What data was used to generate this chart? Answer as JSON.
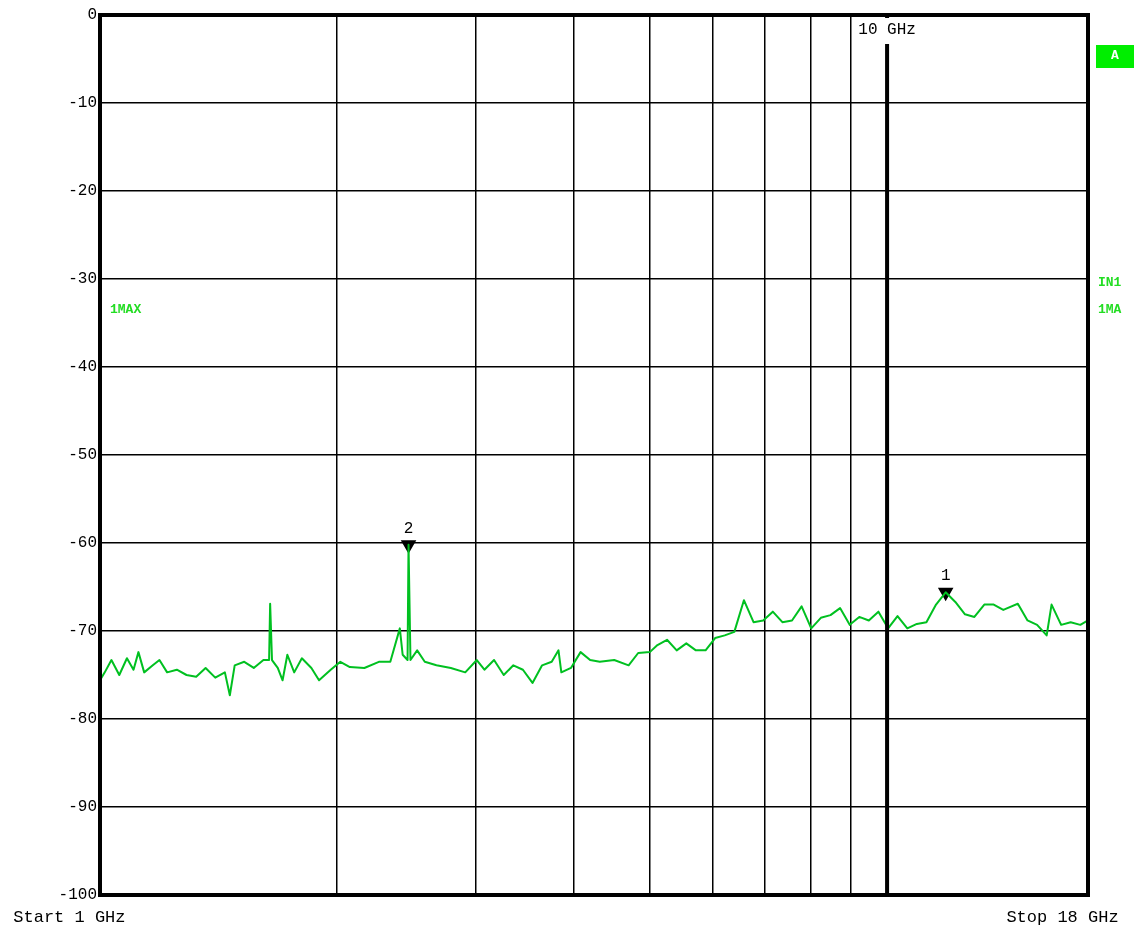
{
  "chart_data": {
    "type": "line",
    "x": [
      1.0,
      1.014,
      1.034,
      1.058,
      1.082,
      1.103,
      1.119,
      1.138,
      1.167,
      1.19,
      1.217,
      1.252,
      1.288,
      1.325,
      1.362,
      1.401,
      1.441,
      1.462,
      1.483,
      1.525,
      1.568,
      1.613,
      1.64,
      1.645,
      1.654,
      1.682,
      1.706,
      1.73,
      1.765,
      1.805,
      1.856,
      1.898,
      1.964,
      2.02,
      2.077,
      2.167,
      2.261,
      2.338,
      2.404,
      2.424,
      2.459,
      2.466,
      2.48,
      2.529,
      2.586,
      2.676,
      2.791,
      2.911,
      3.011,
      3.079,
      3.167,
      3.258,
      3.351,
      3.446,
      3.544,
      3.645,
      3.749,
      3.824,
      3.856,
      3.966,
      4.079,
      4.195,
      4.315,
      4.501,
      4.695,
      4.828,
      4.995,
      5.108,
      5.253,
      5.404,
      5.558,
      5.716,
      5.88,
      6.047,
      6.219,
      6.396,
      6.578,
      6.766,
      6.96,
      7.158,
      7.362,
      7.572,
      7.788,
      8.01,
      8.239,
      8.474,
      8.715,
      8.964,
      9.219,
      9.48,
      9.75,
      10.03,
      10.31,
      10.61,
      10.91,
      11.22,
      11.54,
      11.87,
      12.21,
      12.56,
      12.91,
      13.29,
      13.66,
      14.05,
      14.66,
      15.08,
      15.51,
      15.95,
      16.18,
      16.64,
      17.11,
      17.6,
      18.0
    ],
    "series": [
      {
        "color": "#00c020",
        "values": [
          -75.6,
          -74.7,
          -73.3,
          -75.0,
          -73.1,
          -74.4,
          -72.4,
          -74.7,
          -73.9,
          -73.3,
          -74.7,
          -74.4,
          -75.0,
          -75.2,
          -74.2,
          -75.3,
          -74.7,
          -77.3,
          -73.9,
          -73.5,
          -74.2,
          -73.3,
          -73.3,
          -66.9,
          -73.3,
          -74.2,
          -75.6,
          -72.7,
          -74.7,
          -73.1,
          -74.2,
          -75.6,
          -74.4,
          -73.5,
          -74.1,
          -74.2,
          -73.5,
          -73.5,
          -69.7,
          -72.7,
          -73.3,
          -60.2,
          -73.3,
          -72.2,
          -73.5,
          -73.9,
          -74.2,
          -74.7,
          -73.3,
          -74.4,
          -73.3,
          -75.0,
          -73.9,
          -74.4,
          -75.9,
          -73.9,
          -73.5,
          -72.2,
          -74.7,
          -74.2,
          -72.4,
          -73.3,
          -73.5,
          -73.3,
          -73.9,
          -72.5,
          -72.4,
          -71.6,
          -71.0,
          -72.2,
          -71.4,
          -72.2,
          -72.2,
          -70.8,
          -70.5,
          -70.1,
          -66.5,
          -69.0,
          -68.8,
          -67.8,
          -69.0,
          -68.8,
          -67.2,
          -69.7,
          -68.5,
          -68.2,
          -67.4,
          -69.3,
          -68.4,
          -68.8,
          -67.8,
          -69.7,
          -68.3,
          -69.7,
          -69.2,
          -69.0,
          -67.0,
          -65.6,
          -66.7,
          -68.1,
          -68.4,
          -67.0,
          -67.0,
          -67.6,
          -66.9,
          -68.8,
          -69.3,
          -70.5,
          -67.0,
          -69.3,
          -69.0,
          -69.3,
          -68.8
        ]
      },
      {
        "type": "scatter",
        "color": "#000000",
        "marker": "triangle",
        "x": [
          11.87,
          2.466
        ],
        "values": [
          -65.6,
          -60.2
        ]
      }
    ],
    "xlim": [
      1,
      18
    ],
    "xticks": [
      {
        "value": 1,
        "label": "1 GHz"
      },
      {
        "value": 2,
        "label": null
      },
      {
        "value": 3,
        "label": null
      },
      {
        "value": 4,
        "label": null
      },
      {
        "value": 5,
        "label": null
      },
      {
        "value": 6,
        "label": null
      },
      {
        "value": 7,
        "label": null
      },
      {
        "value": 8,
        "label": null
      },
      {
        "value": 9,
        "label": null
      },
      {
        "value": 10,
        "label": null
      },
      {
        "value": 18,
        "label": "18 GHz"
      }
    ],
    "ylim": [
      -100,
      0
    ],
    "yticks": [
      -100,
      -90,
      -80,
      -70,
      -60,
      -50,
      -40,
      -30,
      -20,
      -10,
      0
    ],
    "ref_lines": [
      {
        "axis": "x",
        "value": 10,
        "label": "10 GHz",
        "color": "#000000"
      }
    ],
    "grid": true,
    "log": "x",
    "marker": "none",
    "line_style": "solid",
    "annotations": [
      {
        "text": "1",
        "x": 11.87,
        "y": -65.6
      },
      {
        "text": "2",
        "x": 2.466,
        "y": -60.2
      },
      "Start",
      "Stop",
      "1MAX",
      "A",
      "IN1",
      "1MA"
    ]
  }
}
